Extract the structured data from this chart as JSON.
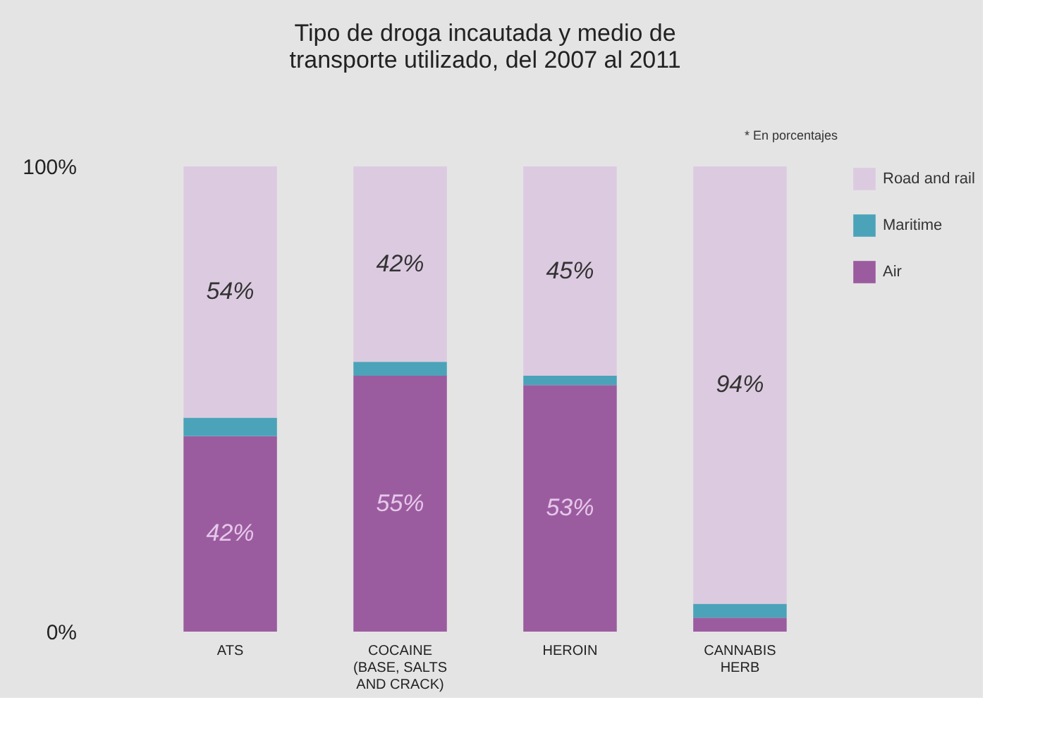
{
  "chart_data": {
    "type": "bar",
    "stacked": true,
    "title": "Tipo de droga incautada y medio de transporte utilizado, del 2007 al 2011",
    "annotations": [
      "* En porcentajes"
    ],
    "categories": [
      "ATS",
      "COCAINE (BASE, SALTS AND CRACK)",
      "HEROIN",
      "CANNABIS HERB"
    ],
    "series": [
      {
        "name": "Air",
        "color": "#9b5c9f",
        "values": [
          42,
          55,
          53,
          3
        ],
        "value_labels": [
          "42%",
          "55%",
          "53%",
          null
        ]
      },
      {
        "name": "Maritime",
        "color": "#4ba3b9",
        "values": [
          4,
          3,
          2,
          3
        ],
        "value_labels": [
          null,
          null,
          null,
          null
        ]
      },
      {
        "name": "Road and rail",
        "color": "#dccbe0",
        "values": [
          54,
          42,
          45,
          94
        ],
        "value_labels": [
          "54%",
          "42%",
          "45%",
          "94%"
        ]
      }
    ],
    "ylim": [
      0,
      100
    ],
    "yticks": [
      {
        "value": 0,
        "label": "0%"
      },
      {
        "value": 100,
        "label": "100%"
      }
    ],
    "grid": false,
    "legend": "top right"
  }
}
